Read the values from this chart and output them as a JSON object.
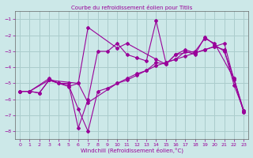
{
  "title": "Courbe du refroidissement éolien pour Titlis",
  "xlabel": "Windchill (Refroidissement éolien,°C)",
  "bg_color": "#cce8e8",
  "grid_color": "#aacccc",
  "line_color": "#990099",
  "spine_color": "#666666",
  "xlim": [
    -0.5,
    23.5
  ],
  "ylim": [
    -8.5,
    -0.5
  ],
  "yticks": [
    -8,
    -7,
    -6,
    -5,
    -4,
    -3,
    -2,
    -1
  ],
  "xticks": [
    0,
    1,
    2,
    3,
    4,
    5,
    6,
    7,
    8,
    9,
    10,
    11,
    12,
    13,
    14,
    15,
    16,
    17,
    18,
    19,
    20,
    21,
    22,
    23
  ],
  "lines": [
    {
      "x": [
        0,
        1,
        3,
        6,
        7,
        10,
        11,
        14,
        15,
        16,
        18,
        19,
        20,
        22,
        23
      ],
      "y": [
        -5.5,
        -5.5,
        -4.8,
        -5.0,
        -1.5,
        -2.8,
        -2.5,
        -3.5,
        -3.8,
        -3.2,
        -3.0,
        -2.2,
        -2.5,
        -4.7,
        -6.8
      ]
    },
    {
      "x": [
        0,
        1,
        2,
        3,
        4,
        5,
        6,
        7,
        8,
        9,
        10,
        11,
        12,
        13,
        14,
        15,
        16,
        17,
        18,
        19,
        20,
        21,
        22,
        23
      ],
      "y": [
        -5.5,
        -5.5,
        -5.6,
        -4.8,
        -5.0,
        -5.1,
        -6.6,
        -8.0,
        -5.5,
        -5.3,
        -5.0,
        -4.7,
        -4.4,
        -4.2,
        -3.9,
        -3.7,
        -3.5,
        -3.3,
        -3.1,
        -2.9,
        -2.7,
        -2.5,
        -4.8,
        -6.8
      ]
    },
    {
      "x": [
        0,
        1,
        3,
        4,
        5,
        6,
        7,
        8,
        9,
        10,
        11,
        12,
        13,
        14,
        15,
        16,
        17,
        18,
        19,
        20,
        21,
        22,
        23
      ],
      "y": [
        -5.5,
        -5.5,
        -4.7,
        -5.0,
        -5.0,
        -7.8,
        -6.0,
        -3.0,
        -3.0,
        -2.5,
        -3.2,
        -3.4,
        -3.6,
        -1.1,
        -3.7,
        -3.5,
        -3.0,
        -3.2,
        -2.1,
        -2.6,
        -3.0,
        -4.7,
        -6.7
      ]
    },
    {
      "x": [
        0,
        1,
        2,
        3,
        5,
        6,
        7,
        10,
        11,
        12,
        13,
        14,
        15,
        16,
        17,
        18,
        19,
        20,
        21,
        22,
        23
      ],
      "y": [
        -5.5,
        -5.5,
        -5.6,
        -4.8,
        -5.2,
        -5.0,
        -6.2,
        -5.0,
        -4.8,
        -4.5,
        -4.2,
        -3.7,
        -3.8,
        -3.2,
        -2.9,
        -3.1,
        -2.9,
        -2.7,
        -2.9,
        -5.1,
        -6.7
      ]
    }
  ]
}
